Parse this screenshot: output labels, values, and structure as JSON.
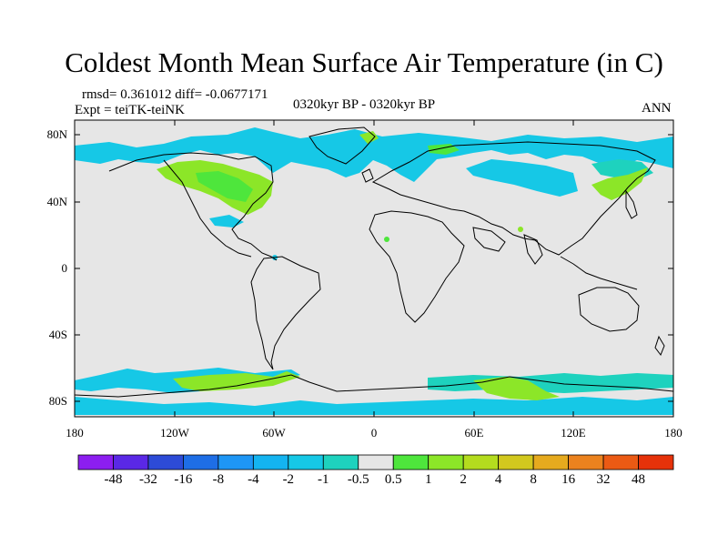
{
  "title": "Coldest Month Mean Surface Air Temperature (in C)",
  "stats": "rmsd= 0.361012 diff= -0.0677171",
  "experiment": "Expt = teiTK-teiNK",
  "period": "0320kyr BP - 0320kyr BP",
  "season": "ANN",
  "lat_labels": [
    "80N",
    "40N",
    "0",
    "40S",
    "80S"
  ],
  "lon_labels": [
    "180",
    "120W",
    "60W",
    "0",
    "60E",
    "120E",
    "180"
  ],
  "colorbar": {
    "labels": [
      "-48",
      "-32",
      "-16",
      "-8",
      "-4",
      "-2",
      "-1",
      "-0.5",
      "0.5",
      "1",
      "2",
      "4",
      "8",
      "16",
      "32",
      "48"
    ],
    "colors": [
      "#8c1ef0",
      "#5a28e6",
      "#2d4bd7",
      "#1e6ee6",
      "#1e96f5",
      "#14b4f0",
      "#16c8e6",
      "#1ed2be",
      "#e6e6e6",
      "#4ee63c",
      "#8ce628",
      "#b4dc1e",
      "#d2c81e",
      "#e6aa1e",
      "#eb821e",
      "#eb5a14",
      "#e6320a"
    ]
  },
  "land_color": "#e6e6e6",
  "anomaly_colors": {
    "cool_1": "#16c8e6",
    "cool_0_5": "#1ed2be",
    "warm_0_5": "#4ee63c",
    "warm_1": "#8ce628"
  }
}
